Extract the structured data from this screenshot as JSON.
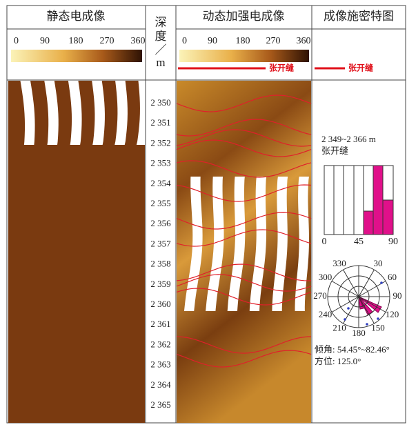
{
  "header": {
    "static_image": "静态电成像",
    "depth": [
      "深",
      "度",
      "／",
      "m"
    ],
    "dynamic_image": "动态加强电成像",
    "feature_map": "成像施密特图"
  },
  "colorbar_ticks": [
    "0",
    "90",
    "180",
    "270",
    "360"
  ],
  "legend": "张开缝",
  "depths": [
    "2 350",
    "2 351",
    "2 352",
    "2 353",
    "2 354",
    "2 355",
    "2 356",
    "2 357",
    "2 358",
    "2 359",
    "2 360",
    "2 361",
    "2 362",
    "2 363",
    "2 364",
    "2 365"
  ],
  "annotation": {
    "interval": "2 349~2 366 m",
    "feature": "张开缝",
    "dip": "倾角: 54.45°~82.46°",
    "azimuth": "方位: 125.0°"
  },
  "histogram_ticks": [
    "0",
    "45",
    "90"
  ],
  "rose_labels": [
    "330",
    "30",
    "60",
    "300",
    "270",
    "90",
    "240",
    "120",
    "210",
    "150",
    "180"
  ]
}
